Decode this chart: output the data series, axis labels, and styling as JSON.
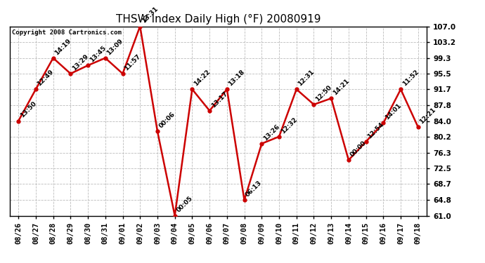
{
  "title": "THSW Index Daily High (°F) 20080919",
  "copyright": "Copyright 2008 Cartronics.com",
  "x_labels": [
    "08/26",
    "08/27",
    "08/28",
    "08/29",
    "08/30",
    "08/31",
    "09/01",
    "09/02",
    "09/03",
    "09/04",
    "09/05",
    "09/06",
    "09/07",
    "09/08",
    "09/09",
    "09/10",
    "09/11",
    "09/12",
    "09/13",
    "09/14",
    "09/15",
    "09/16",
    "09/17",
    "09/18"
  ],
  "y_values": [
    84.0,
    91.7,
    99.3,
    95.5,
    97.5,
    99.3,
    95.5,
    107.0,
    81.5,
    61.0,
    91.7,
    86.5,
    91.7,
    64.8,
    78.5,
    80.2,
    91.7,
    88.0,
    89.5,
    74.5,
    79.0,
    83.5,
    91.7,
    82.5
  ],
  "time_labels": [
    "13:50",
    "12:49",
    "14:19",
    "13:29",
    "13:45",
    "13:09",
    "11:57",
    "13:31",
    "00:06",
    "00:05",
    "14:22",
    "13:17",
    "13:18",
    "06:13",
    "13:26",
    "12:32",
    "12:31",
    "12:50",
    "14:21",
    "00:00",
    "12:54",
    "14:01",
    "11:52",
    "12:21"
  ],
  "y_ticks": [
    61.0,
    64.8,
    68.7,
    72.5,
    76.3,
    80.2,
    84.0,
    87.8,
    91.7,
    95.5,
    99.3,
    103.2,
    107.0
  ],
  "y_min": 61.0,
  "y_max": 107.0,
  "line_color": "#cc0000",
  "marker_color": "#cc0000",
  "bg_color": "#ffffff",
  "grid_color": "#bbbbbb",
  "title_fontsize": 11,
  "label_fontsize": 6.5,
  "tick_fontsize": 7.5,
  "copyright_fontsize": 6.5
}
